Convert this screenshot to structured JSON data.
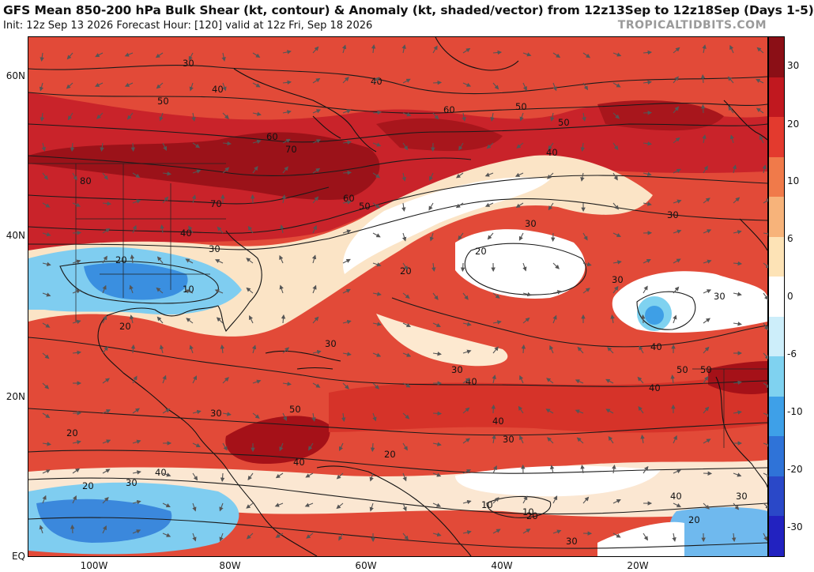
{
  "header": {
    "title": "GFS Mean 850-200 hPa Bulk Shear (kt, contour) & Anomaly (kt, shaded/vector) from 12z13Sep to 12z18Sep (Days 1-5)",
    "subtitle": "Init: 12z Sep 13 2026   Forecast Hour: [120]   valid at 12z Fri, Sep 18 2026",
    "brand": "TROPICALTIDBITS.COM"
  },
  "map": {
    "lat_labels": [
      "60N",
      "40N",
      "20N",
      "EQ"
    ],
    "lon_labels": [
      "100W",
      "80W",
      "60W",
      "40W",
      "20W"
    ],
    "contour_labels": [
      "30",
      "40",
      "50",
      "60",
      "70",
      "80",
      "70",
      "60",
      "50",
      "40",
      "30",
      "20",
      "10",
      "20",
      "30",
      "40",
      "50",
      "30",
      "40",
      "50",
      "60",
      "50",
      "40",
      "30",
      "20",
      "30",
      "40",
      "50",
      "30",
      "40",
      "30",
      "20",
      "10",
      "20",
      "30",
      "40",
      "20",
      "30",
      "40",
      "50",
      "40",
      "30",
      "20",
      "10",
      "20",
      "30",
      "40",
      "30",
      "20"
    ]
  },
  "colorbar": {
    "labels": [
      "30",
      "20",
      "10",
      "6",
      "0",
      "-6",
      "-10",
      "-20",
      "-30"
    ],
    "colors": [
      "#8b0f16",
      "#c1181f",
      "#e33a2e",
      "#f07a4a",
      "#f7b37a",
      "#fde3b6",
      "#ffffff",
      "#cdeefa",
      "#7fd2f0",
      "#3ea0e8",
      "#2f73d8",
      "#2a48c8",
      "#2222c0"
    ]
  }
}
